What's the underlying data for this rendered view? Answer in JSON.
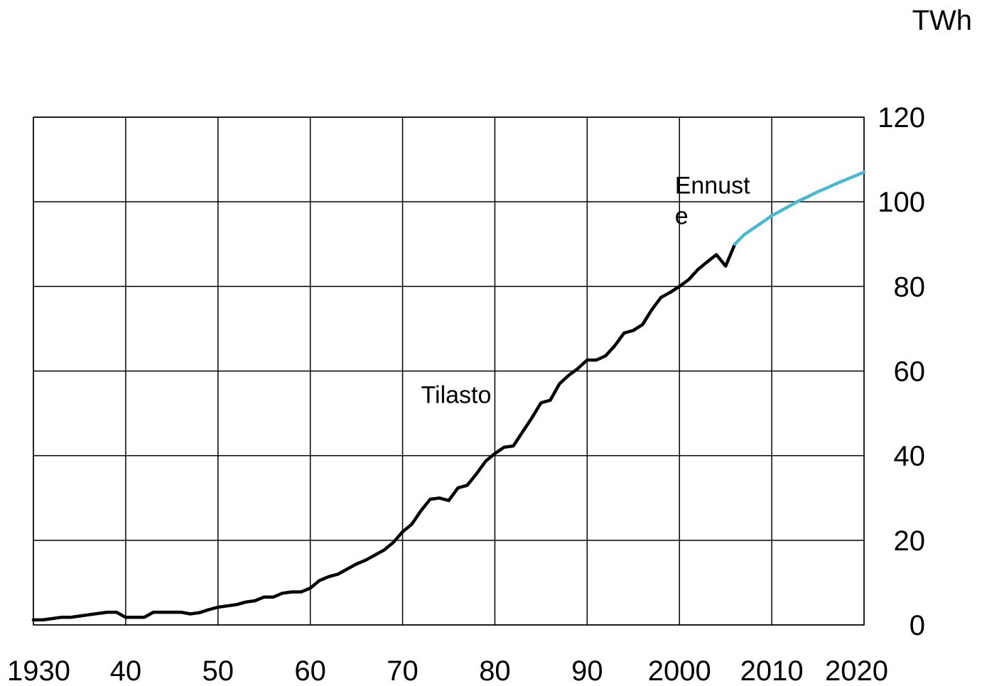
{
  "chart_data": {
    "type": "line",
    "unit_label": "TWh",
    "x_tick_labels": [
      "1930",
      "40",
      "50",
      "60",
      "70",
      "80",
      "90",
      "2000",
      "2010",
      "2020"
    ],
    "x_ticks": [
      1930,
      1940,
      1950,
      1960,
      1970,
      1980,
      1990,
      2000,
      2010,
      2020
    ],
    "y_tick_labels": [
      "0",
      "20",
      "40",
      "60",
      "80",
      "100",
      "120"
    ],
    "y_ticks": [
      0,
      20,
      40,
      60,
      80,
      100,
      120
    ],
    "xlim": [
      1930,
      2020
    ],
    "ylim": [
      0,
      120
    ],
    "grid": true,
    "y_axis_side": "right",
    "annotations": [
      {
        "text_lines": [
          "Ennust",
          "e"
        ],
        "x": 1999.5,
        "y": 104
      },
      {
        "text_lines": [
          "Tilasto"
        ],
        "x": 1972,
        "y": 54.5
      }
    ],
    "series": [
      {
        "name": "Tilasto",
        "color": "#000000",
        "x": [
          1930,
          1931,
          1932,
          1933,
          1934,
          1935,
          1936,
          1937,
          1938,
          1939,
          1940,
          1941,
          1942,
          1943,
          1944,
          1945,
          1946,
          1947,
          1948,
          1949,
          1950,
          1951,
          1952,
          1953,
          1954,
          1955,
          1956,
          1957,
          1958,
          1959,
          1960,
          1961,
          1962,
          1963,
          1964,
          1965,
          1966,
          1967,
          1968,
          1969,
          1970,
          1971,
          1972,
          1973,
          1974,
          1975,
          1976,
          1977,
          1978,
          1979,
          1980,
          1981,
          1982,
          1983,
          1984,
          1985,
          1986,
          1987,
          1988,
          1989,
          1990,
          1991,
          1992,
          1993,
          1994,
          1995,
          1996,
          1997,
          1998,
          1999,
          2000,
          2001,
          2002,
          2003,
          2004,
          2005,
          2006
        ],
        "y": [
          1.2,
          1.2,
          1.5,
          1.8,
          1.8,
          2.1,
          2.4,
          2.7,
          3.0,
          3.0,
          1.8,
          1.8,
          1.8,
          3.0,
          3.0,
          3.0,
          3.0,
          2.6,
          2.9,
          3.6,
          4.2,
          4.5,
          4.8,
          5.4,
          5.7,
          6.6,
          6.6,
          7.5,
          7.8,
          7.8,
          8.7,
          10.5,
          11.4,
          12.0,
          13.2,
          14.4,
          15.3,
          16.5,
          17.7,
          19.5,
          22.0,
          23.8,
          27.0,
          29.7,
          30.0,
          29.4,
          32.4,
          33.0,
          35.7,
          38.7,
          40.5,
          42.0,
          42.3,
          45.6,
          48.9,
          52.5,
          53.1,
          57.0,
          59.0,
          60.6,
          62.6,
          62.6,
          63.6,
          66.0,
          69.0,
          69.6,
          71.0,
          74.5,
          77.4,
          78.6,
          80.0,
          81.6,
          84.0,
          85.8,
          87.5,
          84.8,
          90.0
        ]
      },
      {
        "name": "Ennuste",
        "color": "#4bb8d0",
        "x": [
          2006,
          2007,
          2008,
          2009,
          2010,
          2011,
          2012,
          2013,
          2014,
          2015,
          2016,
          2017,
          2018,
          2019,
          2020
        ],
        "y": [
          90.0,
          92.2,
          93.7,
          95.2,
          96.7,
          97.9,
          99.1,
          100.3,
          101.3,
          102.4,
          103.3,
          104.3,
          105.2,
          106.1,
          107.0
        ]
      }
    ]
  }
}
